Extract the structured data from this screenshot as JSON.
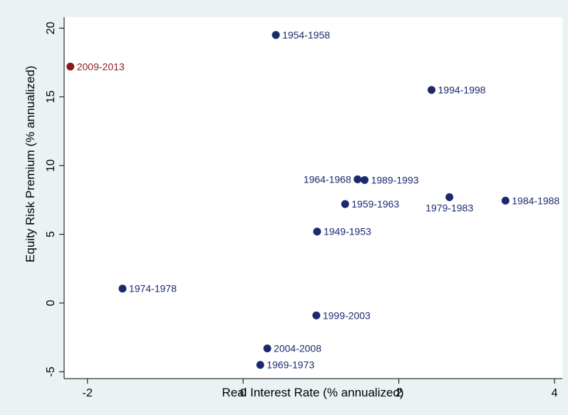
{
  "chart_data": {
    "type": "scatter",
    "xlabel": "Real Interest Rate (% annualized)",
    "ylabel": "Equity Risk Premium (% annualized)",
    "xlim": [
      -2.3,
      4.1
    ],
    "ylim": [
      -5.5,
      20.8
    ],
    "xticks": [
      -2,
      0,
      2,
      4
    ],
    "yticks": [
      -5,
      0,
      5,
      10,
      15,
      20
    ],
    "grid": false,
    "colors": {
      "default": "#1a2a6c",
      "highlight": "#8b1a1a",
      "axis": "#000000",
      "background": "#eaf2f3",
      "plot_background": "#ffffff"
    },
    "points": [
      {
        "x": 0.42,
        "y": 19.5,
        "label": "1954-1958",
        "label_side": "right",
        "highlight": false
      },
      {
        "x": -2.22,
        "y": 17.2,
        "label": "2009-2013",
        "label_side": "right",
        "highlight": true
      },
      {
        "x": 2.42,
        "y": 15.5,
        "label": "1994-1998",
        "label_side": "right",
        "highlight": false
      },
      {
        "x": 1.47,
        "y": 9.0,
        "label": "1964-1968",
        "label_side": "left",
        "highlight": false
      },
      {
        "x": 1.56,
        "y": 8.95,
        "label": "1989-1993",
        "label_side": "right",
        "highlight": false
      },
      {
        "x": 2.65,
        "y": 7.7,
        "label": "1979-1983",
        "label_side": "below",
        "highlight": false
      },
      {
        "x": 3.37,
        "y": 7.45,
        "label": "1984-1988",
        "label_side": "right",
        "highlight": false
      },
      {
        "x": 1.31,
        "y": 7.2,
        "label": "1959-1963",
        "label_side": "right",
        "highlight": false
      },
      {
        "x": 0.95,
        "y": 5.2,
        "label": "1949-1953",
        "label_side": "right",
        "highlight": false
      },
      {
        "x": -1.55,
        "y": 1.05,
        "label": "1974-1978",
        "label_side": "right",
        "highlight": false
      },
      {
        "x": 0.94,
        "y": -0.9,
        "label": "1999-2003",
        "label_side": "right",
        "highlight": false
      },
      {
        "x": 0.31,
        "y": -3.3,
        "label": "2004-2008",
        "label_side": "right",
        "highlight": false
      },
      {
        "x": 0.22,
        "y": -4.5,
        "label": "1969-1973",
        "label_side": "right",
        "highlight": false
      }
    ]
  }
}
